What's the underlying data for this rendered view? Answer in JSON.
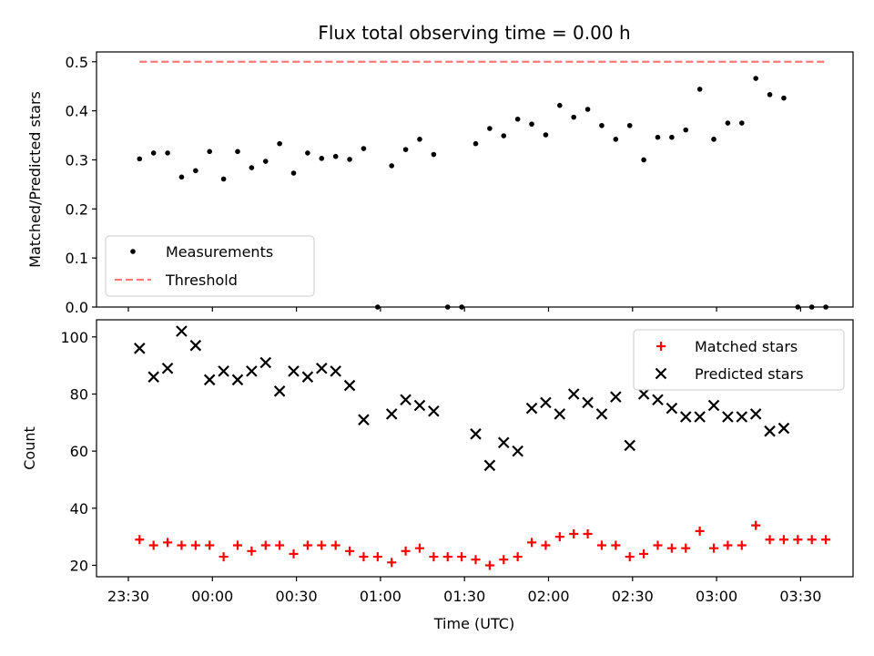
{
  "chart_data": [
    {
      "type": "scatter",
      "title": "Flux total observing time = 0.00 h",
      "xlabel": "",
      "ylabel": "Matched/Predicted stars",
      "ylim": [
        0,
        0.52
      ],
      "yticks": [
        "0.0",
        "0.1",
        "0.2",
        "0.3",
        "0.4",
        "0.5"
      ],
      "legend_position": "lower-left",
      "grid": false,
      "series": [
        {
          "name": "Measurements",
          "marker": "dot",
          "color": "#000000",
          "points": [
            [
              "23:34",
              0.302
            ],
            [
              "23:39",
              0.314
            ],
            [
              "23:44",
              0.314
            ],
            [
              "23:49",
              0.265
            ],
            [
              "23:54",
              0.278
            ],
            [
              "23:59",
              0.317
            ],
            [
              "00:04",
              0.261
            ],
            [
              "00:09",
              0.317
            ],
            [
              "00:14",
              0.284
            ],
            [
              "00:19",
              0.297
            ],
            [
              "00:24",
              0.333
            ],
            [
              "00:29",
              0.273
            ],
            [
              "00:34",
              0.314
            ],
            [
              "00:39",
              0.303
            ],
            [
              "00:44",
              0.307
            ],
            [
              "00:49",
              0.301
            ],
            [
              "00:54",
              0.323
            ],
            [
              "00:59",
              0.0
            ],
            [
              "01:04",
              0.288
            ],
            [
              "01:09",
              0.321
            ],
            [
              "01:14",
              0.342
            ],
            [
              "01:19",
              0.311
            ],
            [
              "01:24",
              0.0
            ],
            [
              "01:29",
              0.0
            ],
            [
              "01:34",
              0.333
            ],
            [
              "01:39",
              0.364
            ],
            [
              "01:44",
              0.349
            ],
            [
              "01:49",
              0.383
            ],
            [
              "01:54",
              0.373
            ],
            [
              "01:59",
              0.351
            ],
            [
              "02:04",
              0.411
            ],
            [
              "02:09",
              0.387
            ],
            [
              "02:14",
              0.403
            ],
            [
              "02:19",
              0.37
            ],
            [
              "02:24",
              0.342
            ],
            [
              "02:29",
              0.37
            ],
            [
              "02:34",
              0.3
            ],
            [
              "02:39",
              0.346
            ],
            [
              "02:44",
              0.346
            ],
            [
              "02:49",
              0.361
            ],
            [
              "02:54",
              0.444
            ],
            [
              "02:59",
              0.342
            ],
            [
              "03:04",
              0.375
            ],
            [
              "03:09",
              0.375
            ],
            [
              "03:14",
              0.466
            ],
            [
              "03:19",
              0.433
            ],
            [
              "03:24",
              0.426
            ],
            [
              "03:29",
              0.0
            ],
            [
              "03:34",
              0.0
            ],
            [
              "03:39",
              0.0
            ]
          ]
        },
        {
          "name": "Threshold",
          "marker": "dashed-line",
          "color": "#ff7777",
          "points": [
            [
              "23:34",
              0.5
            ],
            [
              "03:39",
              0.5
            ]
          ]
        }
      ]
    },
    {
      "type": "scatter",
      "title": "",
      "xlabel": "Time (UTC)",
      "ylabel": "Count",
      "ylim": [
        16,
        106
      ],
      "yticks": [
        "20",
        "40",
        "60",
        "80",
        "100"
      ],
      "xticks": [
        "23:30",
        "00:00",
        "00:30",
        "01:00",
        "01:30",
        "02:00",
        "02:30",
        "03:00",
        "03:30"
      ],
      "legend_position": "upper-right",
      "grid": false,
      "series": [
        {
          "name": "Matched stars",
          "marker": "plus",
          "color": "#ff0000",
          "points": [
            [
              "23:34",
              29
            ],
            [
              "23:39",
              27
            ],
            [
              "23:44",
              28
            ],
            [
              "23:49",
              27
            ],
            [
              "23:54",
              27
            ],
            [
              "23:59",
              27
            ],
            [
              "00:04",
              23
            ],
            [
              "00:09",
              27
            ],
            [
              "00:14",
              25
            ],
            [
              "00:19",
              27
            ],
            [
              "00:24",
              27
            ],
            [
              "00:29",
              24
            ],
            [
              "00:34",
              27
            ],
            [
              "00:39",
              27
            ],
            [
              "00:44",
              27
            ],
            [
              "00:49",
              25
            ],
            [
              "00:54",
              23
            ],
            [
              "00:59",
              23
            ],
            [
              "01:04",
              21
            ],
            [
              "01:09",
              25
            ],
            [
              "01:14",
              26
            ],
            [
              "01:19",
              23
            ],
            [
              "01:24",
              23
            ],
            [
              "01:29",
              23
            ],
            [
              "01:34",
              22
            ],
            [
              "01:39",
              20
            ],
            [
              "01:44",
              22
            ],
            [
              "01:49",
              23
            ],
            [
              "01:54",
              28
            ],
            [
              "01:59",
              27
            ],
            [
              "02:04",
              30
            ],
            [
              "02:09",
              31
            ],
            [
              "02:14",
              31
            ],
            [
              "02:19",
              27
            ],
            [
              "02:24",
              27
            ],
            [
              "02:29",
              23
            ],
            [
              "02:34",
              24
            ],
            [
              "02:39",
              27
            ],
            [
              "02:44",
              26
            ],
            [
              "02:49",
              26
            ],
            [
              "02:54",
              32
            ],
            [
              "02:59",
              26
            ],
            [
              "03:04",
              27
            ],
            [
              "03:09",
              27
            ],
            [
              "03:14",
              34
            ],
            [
              "03:19",
              29
            ],
            [
              "03:24",
              29
            ],
            [
              "03:29",
              29
            ],
            [
              "03:34",
              29
            ],
            [
              "03:39",
              29
            ]
          ]
        },
        {
          "name": "Predicted stars",
          "marker": "x",
          "color": "#000000",
          "points": [
            [
              "23:34",
              96
            ],
            [
              "23:39",
              86
            ],
            [
              "23:44",
              89
            ],
            [
              "23:49",
              102
            ],
            [
              "23:54",
              97
            ],
            [
              "23:59",
              85
            ],
            [
              "00:04",
              88
            ],
            [
              "00:09",
              85
            ],
            [
              "00:14",
              88
            ],
            [
              "00:19",
              91
            ],
            [
              "00:24",
              81
            ],
            [
              "00:29",
              88
            ],
            [
              "00:34",
              86
            ],
            [
              "00:39",
              89
            ],
            [
              "00:44",
              88
            ],
            [
              "00:49",
              83
            ],
            [
              "00:54",
              71
            ],
            [
              "01:04",
              73
            ],
            [
              "01:09",
              78
            ],
            [
              "01:14",
              76
            ],
            [
              "01:19",
              74
            ],
            [
              "01:34",
              66
            ],
            [
              "01:39",
              55
            ],
            [
              "01:44",
              63
            ],
            [
              "01:49",
              60
            ],
            [
              "01:54",
              75
            ],
            [
              "01:59",
              77
            ],
            [
              "02:04",
              73
            ],
            [
              "02:09",
              80
            ],
            [
              "02:14",
              77
            ],
            [
              "02:19",
              73
            ],
            [
              "02:24",
              79
            ],
            [
              "02:29",
              62
            ],
            [
              "02:34",
              80
            ],
            [
              "02:39",
              78
            ],
            [
              "02:44",
              75
            ],
            [
              "02:49",
              72
            ],
            [
              "02:54",
              72
            ],
            [
              "02:59",
              76
            ],
            [
              "03:04",
              72
            ],
            [
              "03:09",
              72
            ],
            [
              "03:14",
              73
            ],
            [
              "03:19",
              67
            ],
            [
              "03:24",
              68
            ]
          ]
        }
      ]
    }
  ]
}
